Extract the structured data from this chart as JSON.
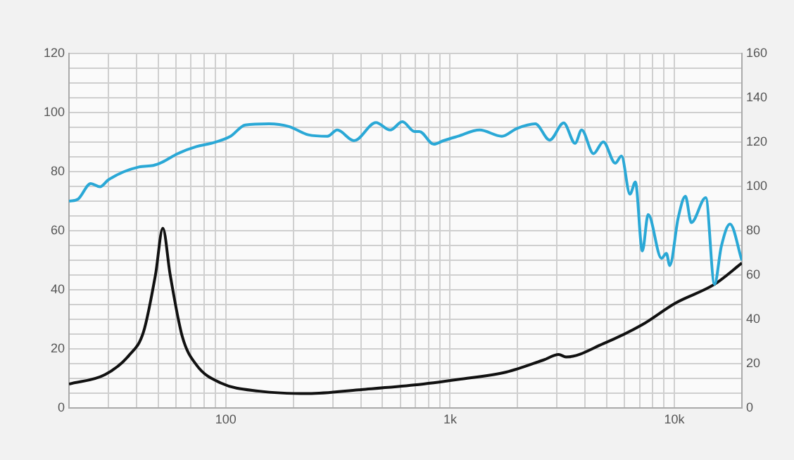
{
  "chart_data": {
    "type": "line",
    "log": "x",
    "grid": true,
    "legend": false,
    "marker": "none",
    "line_style": "solid",
    "xlim": [
      20,
      20000
    ],
    "xticks": [
      {
        "value": 20,
        "label": null
      },
      {
        "value": 30,
        "label": null
      },
      {
        "value": 40,
        "label": null
      },
      {
        "value": 50,
        "label": null
      },
      {
        "value": 60,
        "label": null
      },
      {
        "value": 70,
        "label": null
      },
      {
        "value": 80,
        "label": null
      },
      {
        "value": 90,
        "label": null
      },
      {
        "value": 100,
        "label": "100"
      },
      {
        "value": 200,
        "label": null
      },
      {
        "value": 300,
        "label": null
      },
      {
        "value": 400,
        "label": null
      },
      {
        "value": 500,
        "label": null
      },
      {
        "value": 600,
        "label": null
      },
      {
        "value": 700,
        "label": null
      },
      {
        "value": 800,
        "label": null
      },
      {
        "value": 900,
        "label": null
      },
      {
        "value": 1000,
        "label": "1k"
      },
      {
        "value": 2000,
        "label": null
      },
      {
        "value": 3000,
        "label": null
      },
      {
        "value": 4000,
        "label": null
      },
      {
        "value": 5000,
        "label": null
      },
      {
        "value": 6000,
        "label": null
      },
      {
        "value": 7000,
        "label": null
      },
      {
        "value": 8000,
        "label": null
      },
      {
        "value": 9000,
        "label": null
      },
      {
        "value": 10000,
        "label": "10k"
      },
      {
        "value": 20000,
        "label": null
      }
    ],
    "ylim": [
      0,
      120
    ],
    "yticks": [
      0,
      {
        "value": 5,
        "label": null
      },
      {
        "value": 10,
        "label": null
      },
      {
        "value": 15,
        "label": null
      },
      20,
      {
        "value": 25,
        "label": null
      },
      {
        "value": 30,
        "label": null
      },
      {
        "value": 35,
        "label": null
      },
      40,
      {
        "value": 45,
        "label": null
      },
      {
        "value": 50,
        "label": null
      },
      {
        "value": 55,
        "label": null
      },
      60,
      {
        "value": 65,
        "label": null
      },
      {
        "value": 70,
        "label": null
      },
      {
        "value": 75,
        "label": null
      },
      80,
      {
        "value": 85,
        "label": null
      },
      {
        "value": 90,
        "label": null
      },
      {
        "value": 95,
        "label": null
      },
      100,
      {
        "value": 105,
        "label": null
      },
      {
        "value": 110,
        "label": null
      },
      {
        "value": 115,
        "label": null
      },
      120
    ],
    "y2lim": [
      0,
      160
    ],
    "y2ticks": [
      0,
      20,
      40,
      60,
      80,
      100,
      120,
      140,
      160
    ],
    "series": [
      {
        "color": "#2aa8d6",
        "x": [
          20,
          22,
          25,
          27.5,
          30,
          41,
          47.5,
          52,
          61,
          74,
          86,
          105,
          122,
          156,
          191,
          233,
          284,
          314,
          373,
          467,
          541,
          613,
          694,
          729,
          846,
          935,
          1085,
          1355,
          1700,
          1980,
          2400,
          2780,
          3210,
          3610,
          3860,
          4360,
          4820,
          5450,
          5810,
          6340,
          6700,
          7200,
          7640,
          8760,
          9210,
          9540,
          10400,
          11200,
          11900,
          13800,
          15100,
          16200,
          17700,
          20000
        ],
        "values": [
          70,
          70.8,
          76,
          74.9,
          77.3,
          81.6,
          82.1,
          83.2,
          86.1,
          88.5,
          89.6,
          92,
          95.8,
          96.2,
          95.3,
          92.5,
          92,
          94.1,
          90.5,
          96.6,
          94.1,
          96.9,
          93.6,
          93.6,
          89.3,
          90.5,
          92,
          94.1,
          92,
          94.6,
          96.2,
          90.7,
          96.5,
          89.6,
          94.1,
          86.1,
          90.1,
          82.9,
          85.3,
          72.4,
          76.5,
          53.2,
          65.5,
          50.7,
          52.4,
          48.3,
          64.4,
          71.7,
          62.8,
          71.2,
          41.9,
          54.8,
          62.3,
          50
        ]
      },
      {
        "color": "#111111",
        "axis": "y2",
        "x": [
          20,
          29,
          37,
          43,
          48.6,
          52.4,
          56.5,
          64,
          74,
          95,
          141,
          233,
          401,
          694,
          1085,
          1780,
          2600,
          3050,
          3300,
          4820,
          7200,
          10100,
          15100,
          20000
        ],
        "values": [
          10.9,
          15.2,
          23.8,
          34.5,
          60.2,
          81.2,
          60.2,
          32.3,
          19.5,
          11.4,
          7.7,
          6.6,
          8.4,
          10.5,
          13,
          16.3,
          21.7,
          24.2,
          23.1,
          29.1,
          37.7,
          47.4,
          55.9,
          65.5
        ]
      }
    ]
  }
}
